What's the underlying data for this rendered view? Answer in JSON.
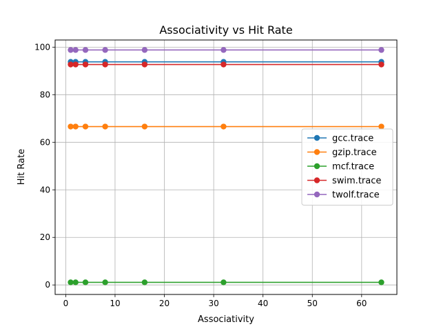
{
  "chart_data": {
    "type": "line",
    "title": "Associativity vs Hit Rate",
    "xlabel": "Associativity",
    "ylabel": "Hit Rate",
    "x": [
      1,
      2,
      4,
      8,
      16,
      32,
      64
    ],
    "xlim": [
      -2.15,
      67.15
    ],
    "ylim": [
      -4.0,
      103.0
    ],
    "xticks": [
      0,
      10,
      20,
      30,
      40,
      50,
      60
    ],
    "yticks": [
      0,
      20,
      40,
      60,
      80,
      100
    ],
    "grid": true,
    "legend_position": "center-right",
    "series": [
      {
        "name": "gcc.trace",
        "color": "#1f77b4",
        "values": [
          93.8,
          93.8,
          93.8,
          93.8,
          93.8,
          93.8,
          93.8
        ]
      },
      {
        "name": "gzip.trace",
        "color": "#ff7f0e",
        "values": [
          66.6,
          66.6,
          66.6,
          66.6,
          66.6,
          66.6,
          66.6
        ]
      },
      {
        "name": "mcf.trace",
        "color": "#2ca02c",
        "values": [
          1.1,
          1.1,
          1.1,
          1.1,
          1.1,
          1.1,
          1.1
        ]
      },
      {
        "name": "swim.trace",
        "color": "#d62728",
        "values": [
          92.7,
          92.7,
          92.7,
          92.7,
          92.7,
          92.7,
          92.7
        ]
      },
      {
        "name": "twolf.trace",
        "color": "#9467bd",
        "values": [
          98.8,
          98.8,
          98.8,
          98.8,
          98.8,
          98.8,
          98.8
        ]
      }
    ]
  }
}
